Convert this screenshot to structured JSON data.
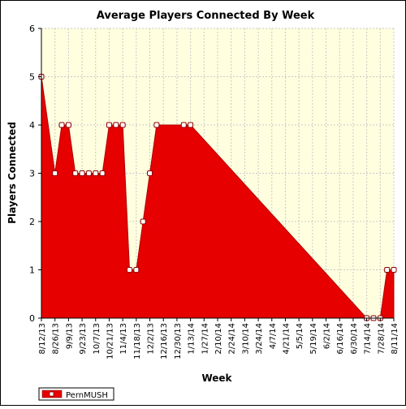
{
  "chart_data": {
    "type": "area",
    "title": "Average Players Connected By Week",
    "xlabel": "Week",
    "ylabel": "Players Connected",
    "ylim": [
      0,
      6
    ],
    "yticks": [
      0,
      1,
      2,
      3,
      4,
      5,
      6
    ],
    "grid": "dashed",
    "legend_position": "bottom-left",
    "colors": {
      "fill": "#e60000",
      "plot_bg": "#ffffe0",
      "marker_fill": "#ffffff"
    },
    "xtick_labels": [
      "8/12/13",
      "8/26/13",
      "9/9/13",
      "9/23/13",
      "10/7/13",
      "10/21/13",
      "11/4/13",
      "11/18/13",
      "12/2/13",
      "12/16/13",
      "12/30/13",
      "1/13/14",
      "1/27/14",
      "2/10/14",
      "2/24/14",
      "3/10/14",
      "3/24/14",
      "4/7/14",
      "4/21/14",
      "5/5/14",
      "5/19/14",
      "6/2/14",
      "6/16/14",
      "6/30/14",
      "7/14/14",
      "7/28/14",
      "8/11/14"
    ],
    "series": [
      {
        "name": "PernMUSH",
        "points": [
          {
            "x": "8/12/13",
            "y": 5
          },
          {
            "x": "8/26/13",
            "y": 3
          },
          {
            "x": "9/2/13",
            "y": 4
          },
          {
            "x": "9/9/13",
            "y": 4
          },
          {
            "x": "9/16/13",
            "y": 3
          },
          {
            "x": "9/23/13",
            "y": 3
          },
          {
            "x": "9/30/13",
            "y": 3
          },
          {
            "x": "10/7/13",
            "y": 3
          },
          {
            "x": "10/14/13",
            "y": 3
          },
          {
            "x": "10/21/13",
            "y": 4
          },
          {
            "x": "10/28/13",
            "y": 4
          },
          {
            "x": "11/4/13",
            "y": 4
          },
          {
            "x": "11/11/13",
            "y": 1
          },
          {
            "x": "11/18/13",
            "y": 1
          },
          {
            "x": "11/25/13",
            "y": 2
          },
          {
            "x": "12/2/13",
            "y": 3
          },
          {
            "x": "12/9/13",
            "y": 4
          },
          {
            "x": "1/6/14",
            "y": 4
          },
          {
            "x": "1/13/14",
            "y": 4
          },
          {
            "x": "7/14/14",
            "y": 0
          },
          {
            "x": "7/21/14",
            "y": 0
          },
          {
            "x": "7/28/14",
            "y": 0
          },
          {
            "x": "8/4/14",
            "y": 1
          },
          {
            "x": "8/11/14",
            "y": 1
          }
        ]
      }
    ]
  }
}
